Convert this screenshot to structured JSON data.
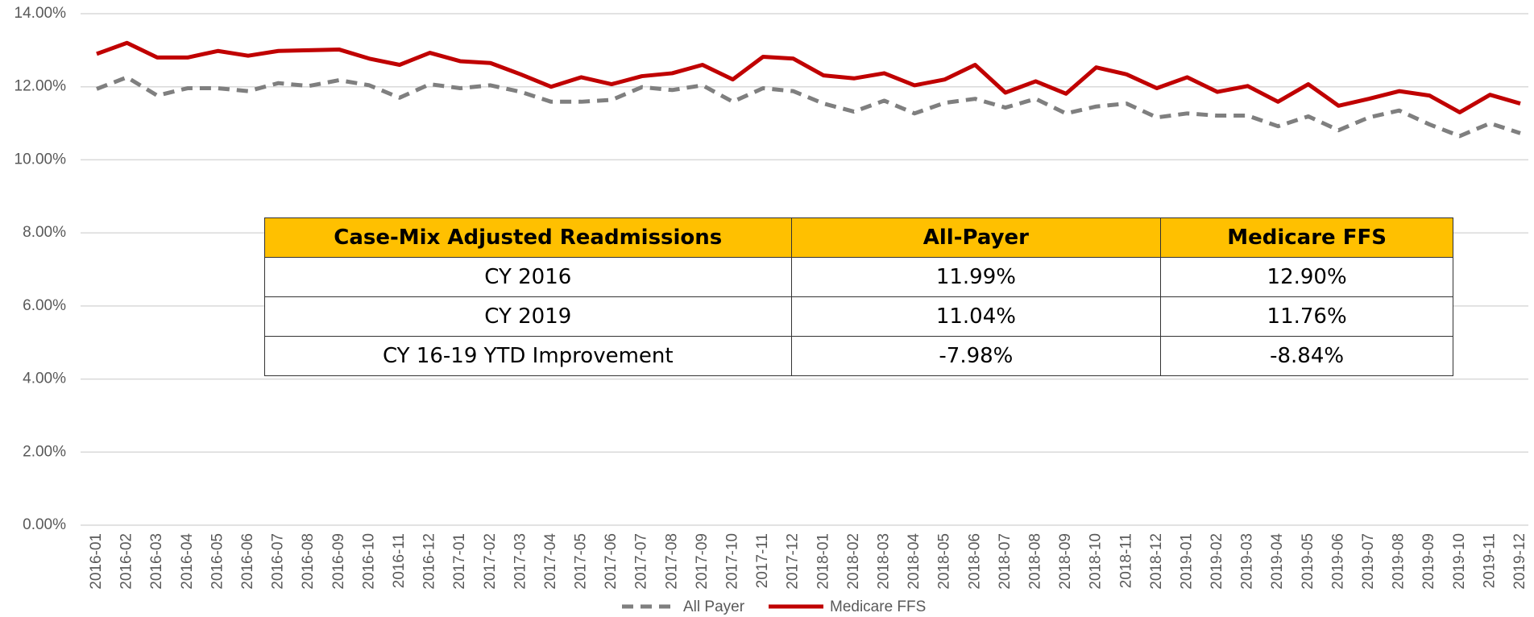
{
  "chart_data": {
    "type": "line",
    "categories": [
      "2016-01",
      "2016-02",
      "2016-03",
      "2016-04",
      "2016-05",
      "2016-06",
      "2016-07",
      "2016-08",
      "2016-09",
      "2016-10",
      "2016-11",
      "2016-12",
      "2017-01",
      "2017-02",
      "2017-03",
      "2017-04",
      "2017-05",
      "2017-06",
      "2017-07",
      "2017-08",
      "2017-09",
      "2017-10",
      "2017-11",
      "2017-12",
      "2018-01",
      "2018-02",
      "2018-03",
      "2018-04",
      "2018-05",
      "2018-06",
      "2018-07",
      "2018-08",
      "2018-09",
      "2018-10",
      "2018-11",
      "2018-12",
      "2019-01",
      "2019-02",
      "2019-03",
      "2019-04",
      "2019-05",
      "2019-06",
      "2019-07",
      "2019-08",
      "2019-09",
      "2019-10",
      "2019-11",
      "2019-12"
    ],
    "series": [
      {
        "name": "All Payer",
        "color": "#7f7f7f",
        "dashed": true,
        "values": [
          11.94,
          12.26,
          11.76,
          11.96,
          11.96,
          11.88,
          12.1,
          12.02,
          12.18,
          12.04,
          11.7,
          12.07,
          11.96,
          12.04,
          11.86,
          11.59,
          11.59,
          11.64,
          11.99,
          11.91,
          12.04,
          11.59,
          11.96,
          11.88,
          11.54,
          11.32,
          11.62,
          11.27,
          11.56,
          11.67,
          11.43,
          11.67,
          11.27,
          11.46,
          11.54,
          11.16,
          11.27,
          11.21,
          11.21,
          10.92,
          11.19,
          10.81,
          11.16,
          11.35,
          10.97,
          10.65,
          11.0,
          10.73
        ]
      },
      {
        "name": "Medicare FFS",
        "color": "#c00000",
        "dashed": false,
        "values": [
          12.9,
          13.2,
          12.8,
          12.8,
          12.98,
          12.85,
          12.98,
          13.0,
          13.02,
          12.77,
          12.6,
          12.93,
          12.7,
          12.65,
          12.34,
          12.0,
          12.26,
          12.07,
          12.29,
          12.37,
          12.6,
          12.2,
          12.82,
          12.77,
          12.31,
          12.23,
          12.37,
          12.04,
          12.2,
          12.6,
          11.84,
          12.15,
          11.81,
          12.53,
          12.34,
          11.96,
          12.26,
          11.86,
          12.02,
          11.59,
          12.07,
          11.48,
          11.67,
          11.88,
          11.76,
          11.3,
          11.78,
          11.54
        ]
      }
    ],
    "ylim": [
      0,
      14
    ],
    "yticks": [
      {
        "value": 0,
        "label": "0.00%"
      },
      {
        "value": 2,
        "label": "2.00%"
      },
      {
        "value": 4,
        "label": "4.00%"
      },
      {
        "value": 6,
        "label": "6.00%"
      },
      {
        "value": 8,
        "label": "8.00%"
      },
      {
        "value": 10,
        "label": "10.00%"
      },
      {
        "value": 12,
        "label": "12.00%"
      },
      {
        "value": 14,
        "label": "14.00%"
      }
    ],
    "grid": true
  },
  "table": {
    "header": [
      "Case-Mix Adjusted Readmissions",
      "All-Payer",
      "Medicare FFS"
    ],
    "rows": [
      [
        "CY 2016",
        "11.99%",
        "12.90%"
      ],
      [
        "CY 2019",
        "11.04%",
        "11.76%"
      ],
      [
        "CY 16-19 YTD Improvement",
        "-7.98%",
        "-8.84%"
      ]
    ]
  }
}
